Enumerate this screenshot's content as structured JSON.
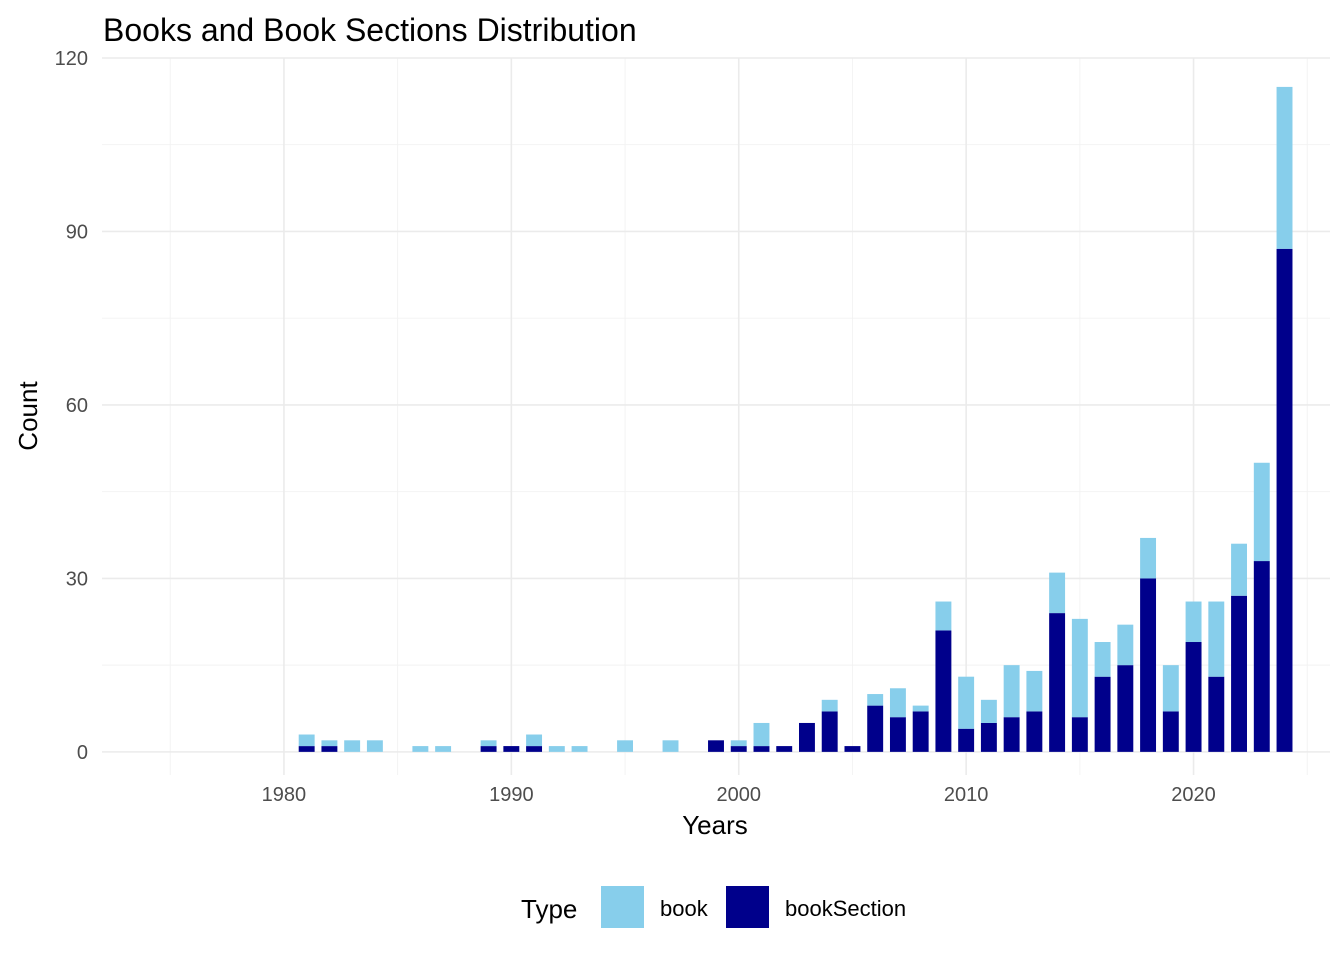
{
  "chart_data": {
    "type": "bar",
    "stacked": true,
    "title": "Books and Book Sections Distribution",
    "xlabel": "Years",
    "ylabel": "Count",
    "xlim": [
      1972,
      2026
    ],
    "ylim": [
      -4,
      120
    ],
    "x_ticks": [
      1980,
      1990,
      2000,
      2010,
      2020
    ],
    "y_ticks": [
      0,
      30,
      60,
      90,
      120
    ],
    "grid": true,
    "legend": {
      "title": "Type",
      "position": "bottom"
    },
    "series": [
      {
        "name": "bookSection",
        "color": "#00008B",
        "points": [
          [
            1981,
            1
          ],
          [
            1982,
            1
          ],
          [
            1989,
            1
          ],
          [
            1990,
            1
          ],
          [
            1991,
            1
          ],
          [
            1999,
            2
          ],
          [
            2000,
            1
          ],
          [
            2001,
            1
          ],
          [
            2002,
            1
          ],
          [
            2003,
            5
          ],
          [
            2004,
            7
          ],
          [
            2005,
            1
          ],
          [
            2006,
            8
          ],
          [
            2007,
            6
          ],
          [
            2008,
            7
          ],
          [
            2009,
            21
          ],
          [
            2010,
            4
          ],
          [
            2011,
            5
          ],
          [
            2012,
            6
          ],
          [
            2013,
            7
          ],
          [
            2014,
            24
          ],
          [
            2015,
            6
          ],
          [
            2016,
            13
          ],
          [
            2017,
            15
          ],
          [
            2018,
            30
          ],
          [
            2019,
            7
          ],
          [
            2020,
            19
          ],
          [
            2021,
            13
          ],
          [
            2022,
            27
          ],
          [
            2023,
            33
          ],
          [
            2024,
            87
          ]
        ]
      },
      {
        "name": "book",
        "color": "#87CEEB",
        "points": [
          [
            1981,
            2
          ],
          [
            1982,
            1
          ],
          [
            1983,
            2
          ],
          [
            1984,
            2
          ],
          [
            1986,
            1
          ],
          [
            1987,
            1
          ],
          [
            1989,
            1
          ],
          [
            1991,
            2
          ],
          [
            1992,
            1
          ],
          [
            1993,
            1
          ],
          [
            1995,
            2
          ],
          [
            1997,
            2
          ],
          [
            2000,
            1
          ],
          [
            2001,
            4
          ],
          [
            2004,
            2
          ],
          [
            2006,
            2
          ],
          [
            2007,
            5
          ],
          [
            2008,
            1
          ],
          [
            2009,
            5
          ],
          [
            2010,
            9
          ],
          [
            2011,
            4
          ],
          [
            2012,
            9
          ],
          [
            2013,
            7
          ],
          [
            2014,
            7
          ],
          [
            2015,
            17
          ],
          [
            2016,
            6
          ],
          [
            2017,
            7
          ],
          [
            2018,
            7
          ],
          [
            2019,
            8
          ],
          [
            2020,
            7
          ],
          [
            2021,
            13
          ],
          [
            2022,
            9
          ],
          [
            2023,
            17
          ],
          [
            2024,
            28
          ]
        ]
      }
    ]
  }
}
